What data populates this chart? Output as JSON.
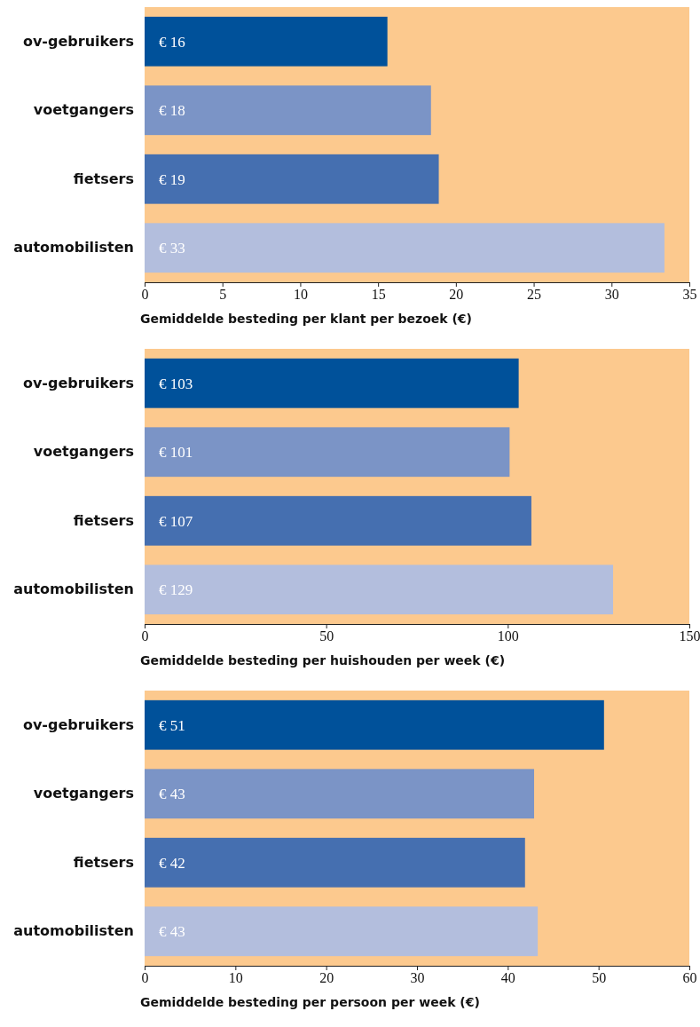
{
  "chart_data": [
    {
      "type": "bar",
      "orientation": "horizontal",
      "categories": [
        "ov-gebruikers",
        "voetgangers",
        "fietsers",
        "automobilisten"
      ],
      "values": [
        15.6,
        18.4,
        18.9,
        33.4
      ],
      "value_labels": [
        "€ 16",
        "€ 18",
        "€ 19",
        "€ 33"
      ],
      "colors": [
        "#00519a",
        "#7b94c6",
        "#456fb0",
        "#b3bedd"
      ],
      "xlim": [
        0,
        35
      ],
      "xticks": [
        0,
        5,
        10,
        15,
        20,
        25,
        30,
        35
      ],
      "xlabel": "Gemiddelde besteding per klant per bezoek (€)",
      "grid": false
    },
    {
      "type": "bar",
      "orientation": "horizontal",
      "categories": [
        "ov-gebruikers",
        "voetgangers",
        "fietsers",
        "automobilisten"
      ],
      "values": [
        103,
        100.5,
        106.5,
        129
      ],
      "value_labels": [
        "€ 103",
        "€ 101",
        "€ 107",
        "€ 129"
      ],
      "colors": [
        "#00519a",
        "#7b94c6",
        "#456fb0",
        "#b3bedd"
      ],
      "xlim": [
        0,
        150
      ],
      "xticks": [
        0,
        50,
        100,
        150
      ],
      "xlabel": "Gemiddelde besteding per huishouden per week (€)",
      "grid": false
    },
    {
      "type": "bar",
      "orientation": "horizontal",
      "categories": [
        "ov-gebruikers",
        "voetgangers",
        "fietsers",
        "automobilisten"
      ],
      "values": [
        50.6,
        42.9,
        41.9,
        43.3
      ],
      "value_labels": [
        "€ 51",
        "€ 43",
        "€ 42",
        "€ 43"
      ],
      "colors": [
        "#00519a",
        "#7b94c6",
        "#456fb0",
        "#b3bedd"
      ],
      "xlim": [
        0,
        60
      ],
      "xticks": [
        0,
        10,
        20,
        30,
        40,
        50,
        60
      ],
      "xlabel": "Gemiddelde besteding per persoon per week (€)",
      "grid": false
    }
  ]
}
